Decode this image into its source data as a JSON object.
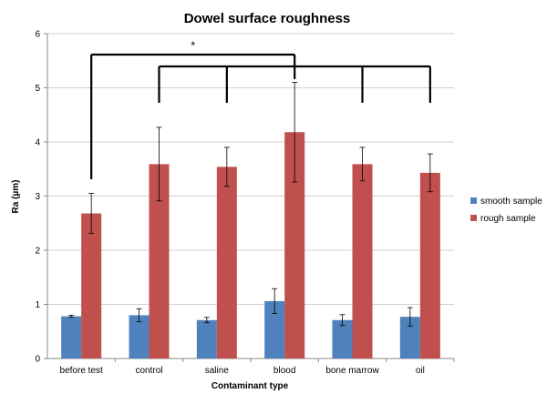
{
  "chart_data": {
    "type": "bar",
    "title": "Dowel surface roughness",
    "xlabel": "Contaminant type",
    "ylabel": "Ra (µm)",
    "ylim": [
      0,
      6
    ],
    "yticks": [
      0,
      1,
      2,
      3,
      4,
      5,
      6
    ],
    "grid": true,
    "legend_position": "right",
    "categories": [
      "before test",
      "control",
      "saline",
      "blood",
      "bone marrow",
      "oil"
    ],
    "series": [
      {
        "name": "smooth sample",
        "color": "#4F81BD",
        "values": [
          0.78,
          0.8,
          0.71,
          1.06,
          0.71,
          0.77
        ],
        "errors": [
          0.02,
          0.12,
          0.05,
          0.23,
          0.1,
          0.17
        ]
      },
      {
        "name": "rough sample",
        "color": "#C0504D",
        "values": [
          2.68,
          3.59,
          3.54,
          4.18,
          3.59,
          3.43
        ],
        "errors": [
          0.37,
          0.68,
          0.36,
          0.92,
          0.31,
          0.35
        ]
      }
    ],
    "annotations": [
      {
        "text": "*",
        "type": "significance-bracket"
      }
    ]
  }
}
